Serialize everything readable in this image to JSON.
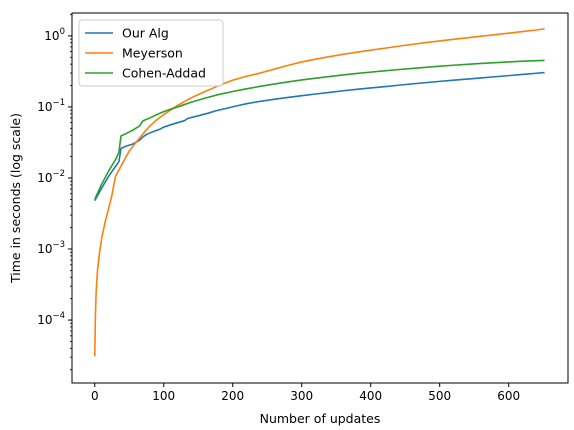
{
  "chart_data": {
    "type": "line",
    "title": "",
    "xlabel": "Number of updates",
    "ylabel": "Time in seconds (log scale)",
    "yscale": "log",
    "xlim": [
      -33,
      686
    ],
    "ylim": [
      1.3e-05,
      2.1
    ],
    "x_ticks": [
      0,
      100,
      200,
      300,
      400,
      500,
      600
    ],
    "x_tick_labels": [
      "0",
      "100",
      "200",
      "300",
      "400",
      "500",
      "600"
    ],
    "y_ticks": [
      0.0001,
      0.001,
      0.01,
      0.1,
      1
    ],
    "y_tick_labels": [
      {
        "base": "10",
        "exp": "−4"
      },
      {
        "base": "10",
        "exp": "−3"
      },
      {
        "base": "10",
        "exp": "−2"
      },
      {
        "base": "10",
        "exp": "−1"
      },
      {
        "base": "10",
        "exp": "0"
      }
    ],
    "grid": false,
    "legend_position": "top-left",
    "series": [
      {
        "name": "Our Alg",
        "color": "#1f77b4",
        "x": [
          0,
          10,
          20,
          30,
          35,
          38,
          45,
          55,
          65,
          70,
          75,
          85,
          95,
          100,
          110,
          120,
          130,
          135,
          150,
          165,
          175,
          190,
          205,
          220,
          240,
          260,
          280,
          300,
          320,
          340,
          360,
          380,
          400,
          420,
          440,
          460,
          480,
          500,
          520,
          540,
          560,
          580,
          600,
          620,
          640,
          652
        ],
        "y": [
          0.0048,
          0.0072,
          0.0105,
          0.0145,
          0.017,
          0.026,
          0.028,
          0.03,
          0.034,
          0.038,
          0.041,
          0.045,
          0.049,
          0.052,
          0.056,
          0.06,
          0.064,
          0.069,
          0.075,
          0.082,
          0.088,
          0.095,
          0.103,
          0.111,
          0.12,
          0.128,
          0.136,
          0.144,
          0.152,
          0.16,
          0.169,
          0.177,
          0.185,
          0.193,
          0.202,
          0.211,
          0.22,
          0.229,
          0.238,
          0.247,
          0.256,
          0.266,
          0.276,
          0.287,
          0.298,
          0.305
        ]
      },
      {
        "name": "Meyerson",
        "color": "#ff7f0e",
        "x": [
          0,
          1,
          2,
          4,
          7,
          10,
          15,
          20,
          25,
          30,
          40,
          50,
          60,
          70,
          80,
          90,
          100,
          120,
          140,
          160,
          180,
          200,
          220,
          240,
          260,
          280,
          300,
          320,
          340,
          360,
          380,
          400,
          420,
          440,
          460,
          480,
          500,
          520,
          540,
          560,
          580,
          600,
          620,
          640,
          652
        ],
        "y": [
          3.1e-05,
          0.00012,
          0.00025,
          0.0005,
          0.0009,
          0.0014,
          0.0024,
          0.0037,
          0.0058,
          0.0105,
          0.016,
          0.024,
          0.032,
          0.042,
          0.054,
          0.066,
          0.078,
          0.105,
          0.135,
          0.165,
          0.2,
          0.238,
          0.27,
          0.3,
          0.34,
          0.385,
          0.43,
          0.47,
          0.51,
          0.55,
          0.59,
          0.63,
          0.67,
          0.715,
          0.76,
          0.805,
          0.85,
          0.895,
          0.94,
          0.99,
          1.04,
          1.09,
          1.15,
          1.21,
          1.26
        ]
      },
      {
        "name": "Cohen-Addad",
        "color": "#2ca02c",
        "x": [
          0,
          10,
          20,
          30,
          35,
          38,
          45,
          55,
          65,
          70,
          80,
          90,
          100,
          110,
          120,
          130,
          140,
          160,
          180,
          200,
          220,
          240,
          260,
          280,
          300,
          320,
          340,
          360,
          380,
          400,
          420,
          440,
          460,
          480,
          500,
          520,
          540,
          560,
          580,
          600,
          620,
          640,
          652
        ],
        "y": [
          0.005,
          0.0082,
          0.0125,
          0.018,
          0.023,
          0.039,
          0.042,
          0.047,
          0.054,
          0.064,
          0.07,
          0.078,
          0.086,
          0.093,
          0.1,
          0.108,
          0.117,
          0.133,
          0.15,
          0.165,
          0.18,
          0.195,
          0.21,
          0.225,
          0.24,
          0.254,
          0.268,
          0.282,
          0.296,
          0.309,
          0.322,
          0.335,
          0.348,
          0.361,
          0.374,
          0.386,
          0.398,
          0.41,
          0.42,
          0.43,
          0.44,
          0.448,
          0.452
        ]
      }
    ]
  }
}
